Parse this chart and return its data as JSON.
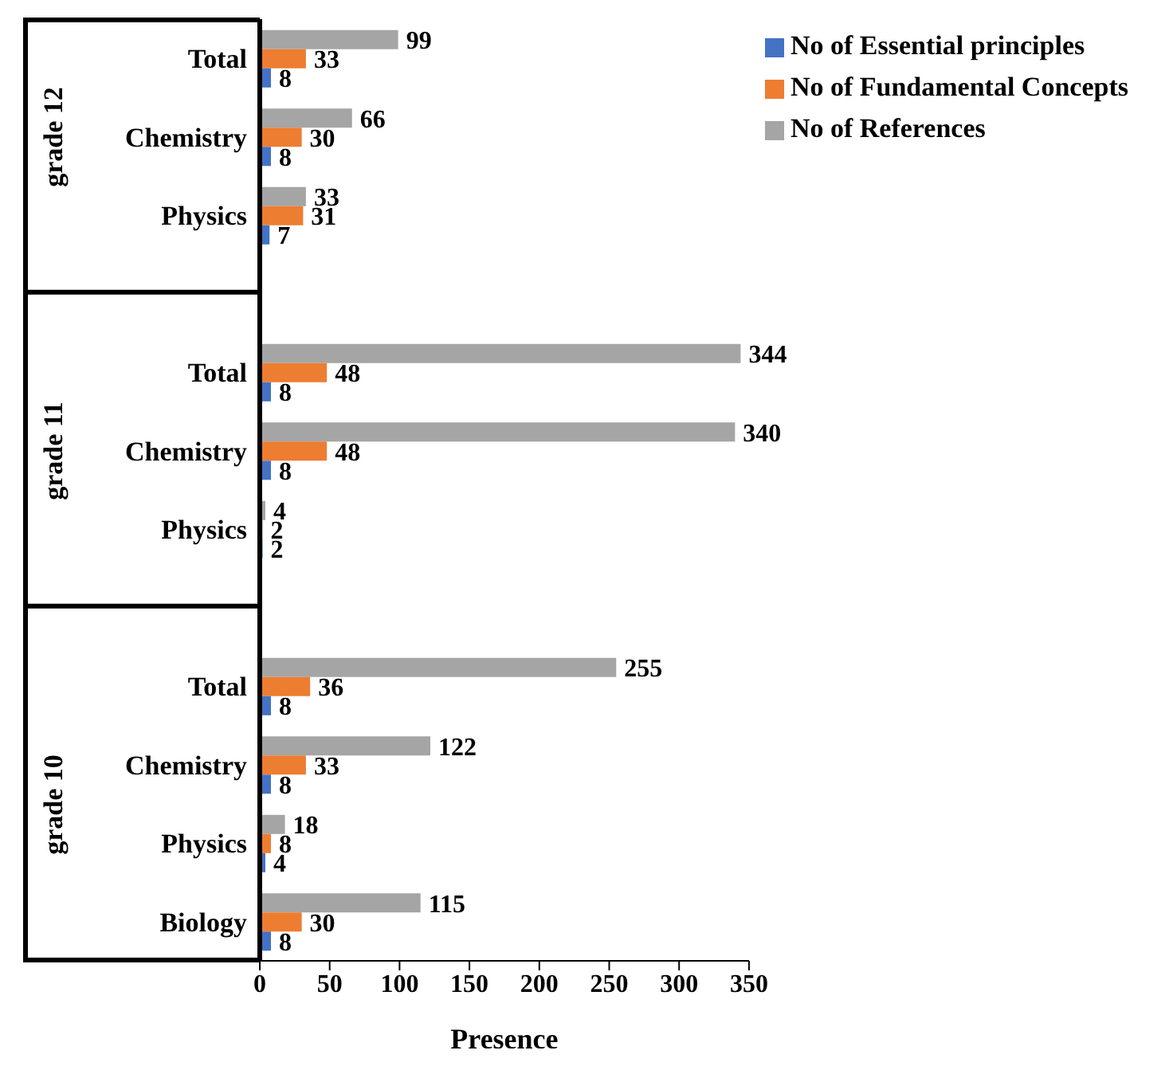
{
  "chart_data": {
    "type": "bar",
    "orientation": "horizontal",
    "xlabel": "Presence",
    "categories": [
      "Total",
      "Chemistry",
      "Physics",
      null,
      "Total",
      "Chemistry",
      "Physics",
      null,
      "Total",
      "Chemistry",
      "Physics",
      "Biology"
    ],
    "series": [
      {
        "name": "No of References",
        "color": "#a5a5a5",
        "values": [
          99,
          66,
          33,
          null,
          344,
          340,
          4,
          null,
          255,
          122,
          18,
          115
        ]
      },
      {
        "name": "No of Fundamental Concepts",
        "color": "#ed7d31",
        "values": [
          33,
          30,
          31,
          null,
          48,
          48,
          2,
          null,
          36,
          33,
          8,
          30
        ]
      },
      {
        "name": "No of Essential principles",
        "color": "#4472c4",
        "values": [
          8,
          8,
          7,
          null,
          8,
          8,
          2,
          null,
          8,
          8,
          4,
          8
        ]
      }
    ],
    "xlim": [
      0,
      350
    ],
    "xticks": [
      0,
      50,
      100,
      150,
      200,
      250,
      300,
      350
    ],
    "data_labels": true,
    "grid": false,
    "legend": "top right",
    "annotations": [
      "grade 12",
      "grade 11",
      "grade 10"
    ]
  }
}
